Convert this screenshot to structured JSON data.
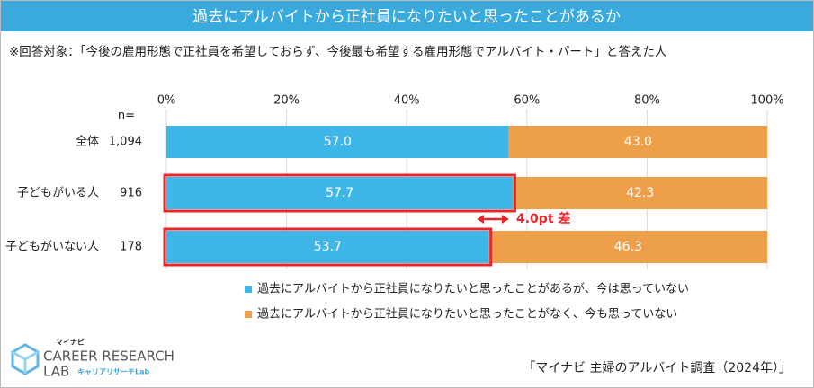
{
  "chart_data": {
    "type": "stacked_barh",
    "title": "過去にアルバイトから正社員になりたいと思ったことがあるか",
    "subtitle": "※回答対象：「今後の雇用形態で正社員を希望しておらず、今後最も希望する雇用形態でアルバイト・パート」と答えた人",
    "categories": [
      "全体",
      "子どもがいる人",
      "子どもがいない人"
    ],
    "n_label": "n=",
    "sample_sizes": [
      {
        "value": 1094,
        "label": "1,094"
      },
      916,
      178
    ],
    "series": [
      {
        "name": "過去にアルバイトから正社員になりたいと思ったことがあるが、今は思っていない",
        "color": "#3fb6e8",
        "values": [
          57.0,
          57.7,
          53.7
        ],
        "value_labels": [
          "57.0",
          "57.7",
          "53.7"
        ]
      },
      {
        "name": "過去にアルバイトから正社員になりたいと思ったことがなく、今も思っていない",
        "color": "#eda049",
        "values": [
          43.0,
          42.3,
          46.3
        ],
        "value_labels": [
          "43.0",
          "42.3",
          "46.3"
        ]
      }
    ],
    "xlim": [
      0,
      100
    ],
    "xticks": [
      {
        "value": 0,
        "label": "0%"
      },
      {
        "value": 20,
        "label": "20%"
      },
      {
        "value": 40,
        "label": "40%"
      },
      {
        "value": 60,
        "label": "60%"
      },
      {
        "value": 80,
        "label": "80%"
      },
      {
        "value": 100,
        "label": "100%"
      }
    ],
    "grid": true,
    "highlight": [
      1,
      2
    ],
    "highlight_color": "#e8252b",
    "annotation": "4.0pt 差",
    "source": "「マイナビ 主婦のアルバイト調査（2024年）」"
  },
  "logo": {
    "brand": "マイナビ",
    "line1": "CAREER RESEARCH",
    "line2": "LAB",
    "sub": "キャリアリサーチLab"
  }
}
